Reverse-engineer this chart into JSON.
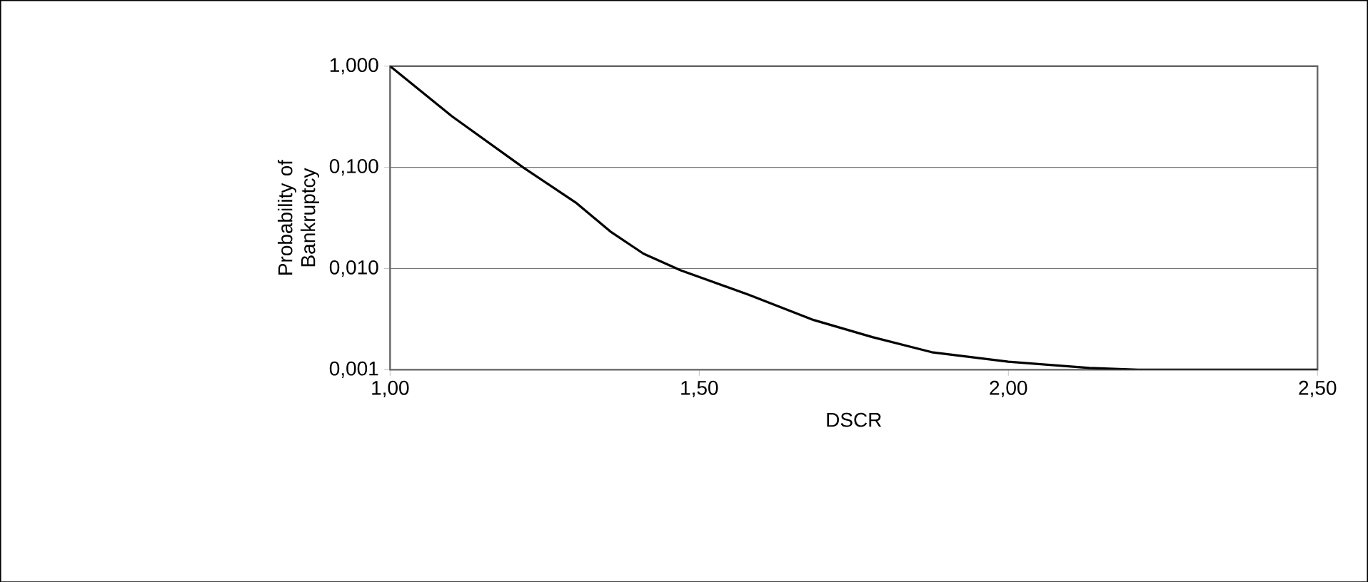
{
  "chart_data": {
    "type": "line",
    "xlabel": "DSCR",
    "ylabel": "Probability of Bankruptcy",
    "x": [
      1.0,
      1.1,
      1.215,
      1.3,
      1.358,
      1.41,
      1.47,
      1.58,
      1.685,
      1.78,
      1.876,
      2.0,
      2.131,
      2.21,
      2.35,
      2.5
    ],
    "series": [
      {
        "color": "#000000",
        "values": [
          1.0,
          0.32,
          0.1,
          0.045,
          0.0228,
          0.014,
          0.0096,
          0.0055,
          0.0031,
          0.0021,
          0.00149,
          0.0012,
          0.00104,
          0.001,
          0.001,
          0.001
        ]
      }
    ],
    "xlim": [
      1.0,
      2.5
    ],
    "xticks": [
      {
        "value": 1.0,
        "label": "1,00"
      },
      {
        "value": 1.5,
        "label": "1,50"
      },
      {
        "value": 2.0,
        "label": "2,00"
      },
      {
        "value": 2.5,
        "label": "2,50"
      }
    ],
    "ylim": [
      0.001,
      1.0
    ],
    "yticks": [
      {
        "value": 0.001,
        "label": "0,001"
      },
      {
        "value": 0.01,
        "label": "0,010"
      },
      {
        "value": 0.1,
        "label": "0,100"
      },
      {
        "value": 1.0,
        "label": "1,000"
      }
    ],
    "log": "y",
    "grid": "y",
    "marker": "none",
    "line_style": "solid",
    "legend": false
  }
}
